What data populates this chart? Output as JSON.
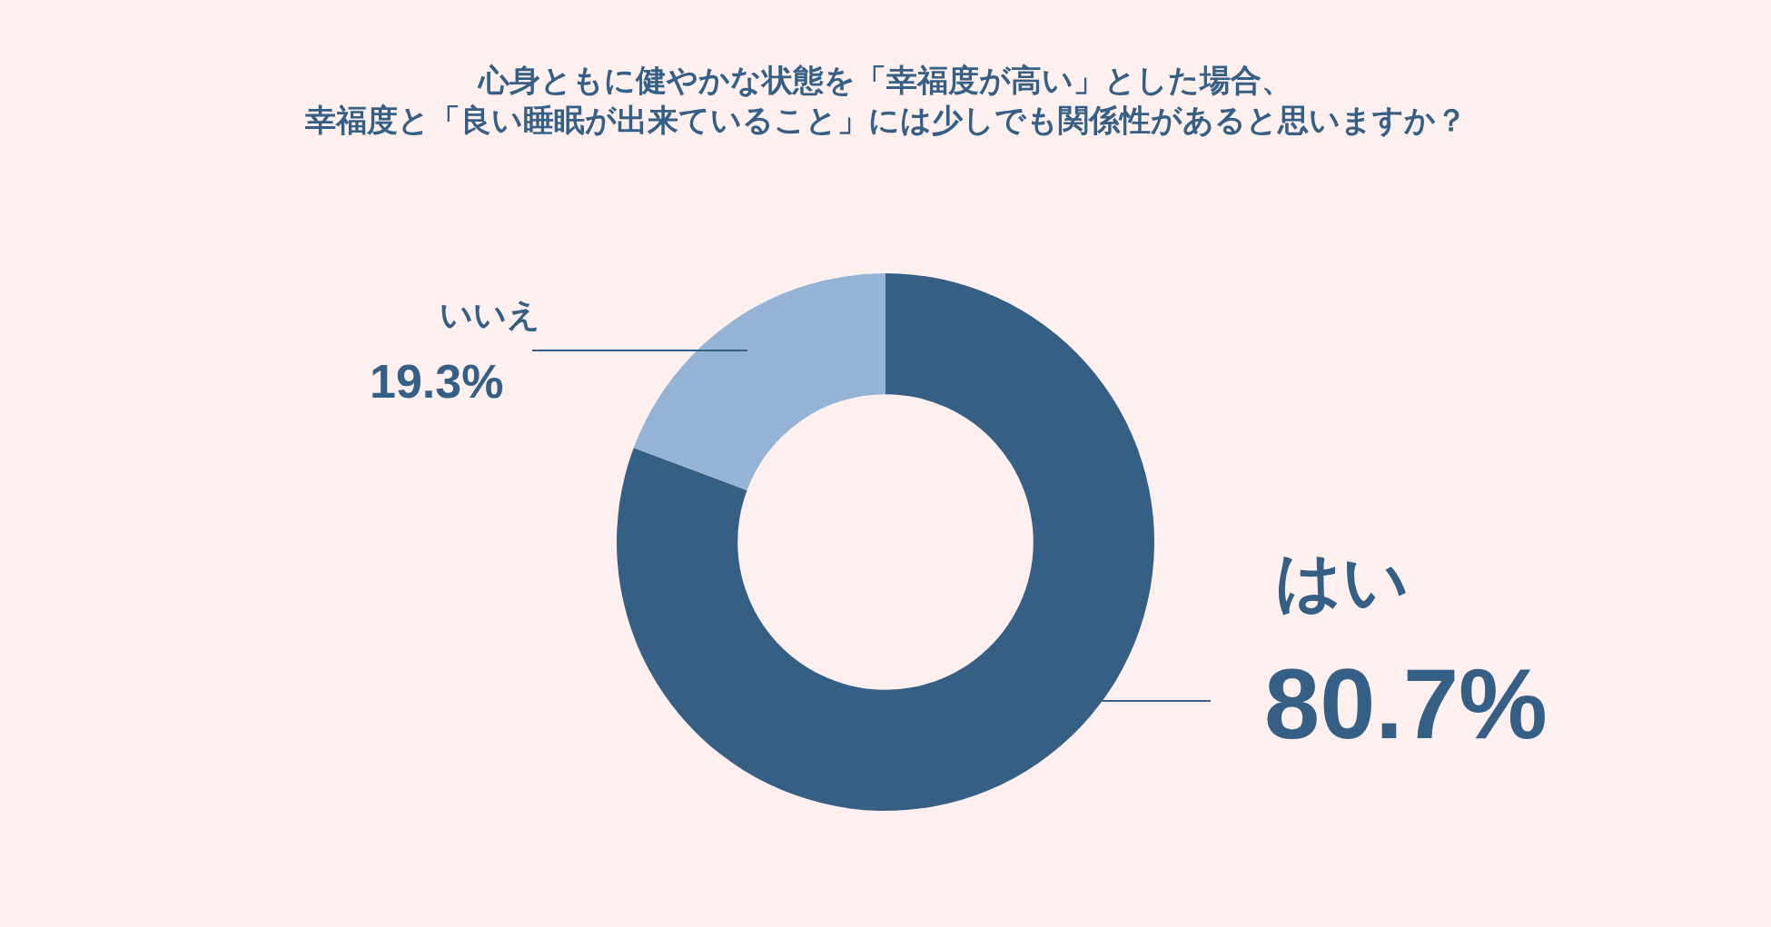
{
  "chart_data": {
    "type": "donut",
    "title": "心身ともに健やかな状態を「幸福度が高い」とした場合、",
    "subtitle": "幸福度と「良い睡眠が出来ていること」には少しでも関係性があると思いますか？",
    "categories": [
      "はい",
      "いいえ"
    ],
    "values": [
      80.7,
      19.3
    ],
    "colors": [
      "#355f85",
      "#94b3d5"
    ],
    "value_labels": [
      "80.7%",
      "19.3%"
    ],
    "legend": false
  }
}
